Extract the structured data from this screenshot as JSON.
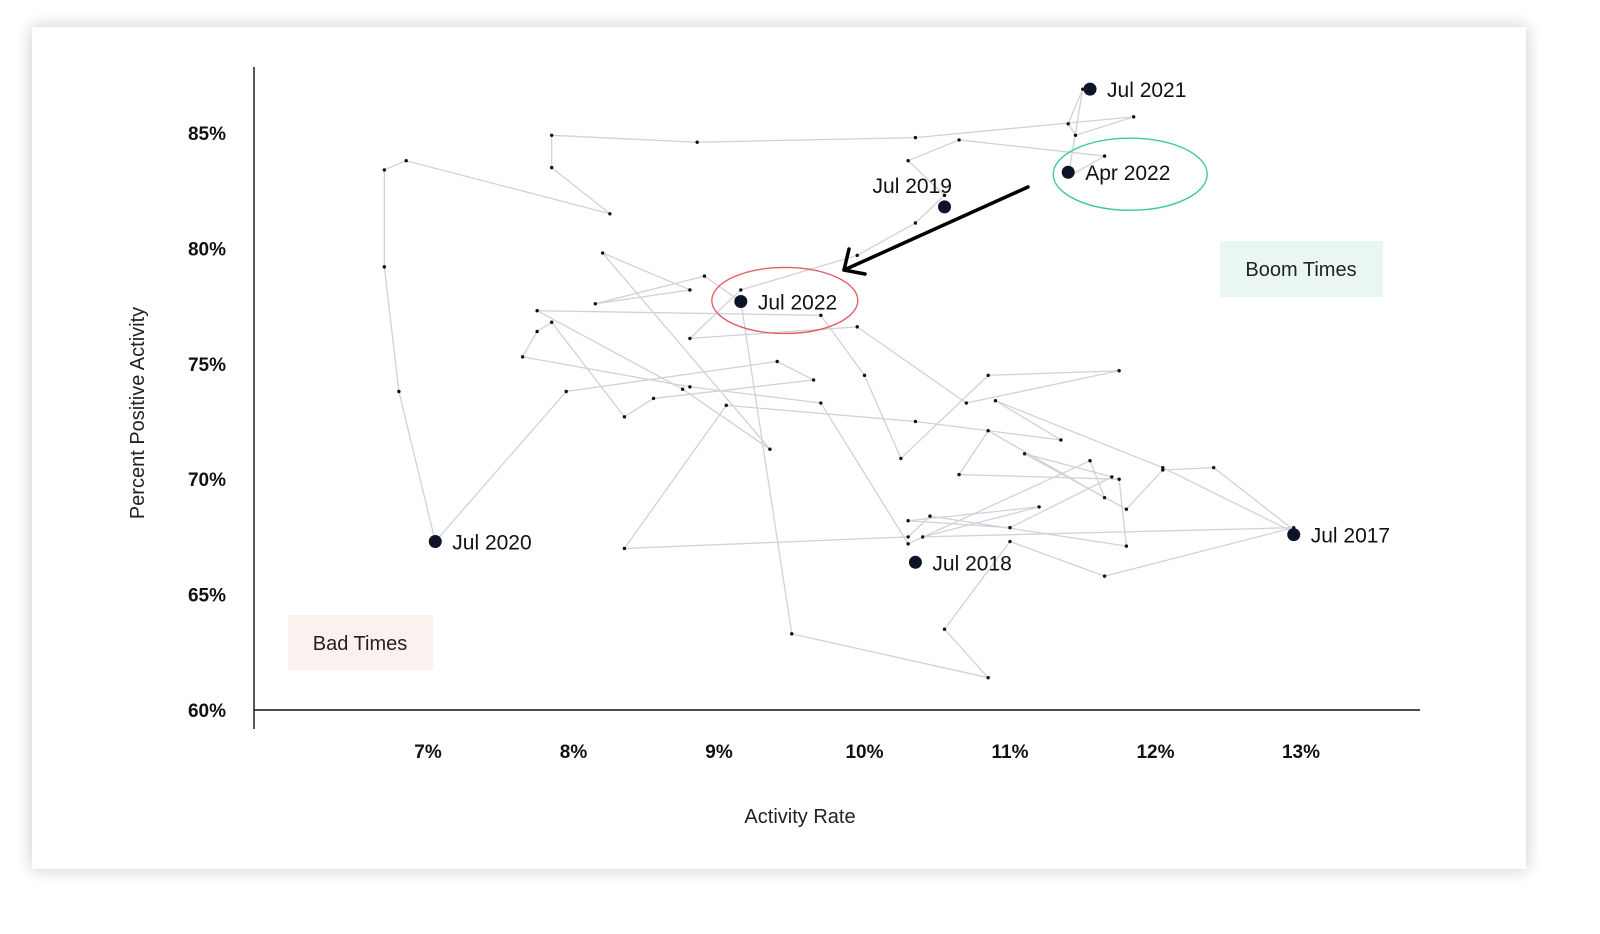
{
  "chart_data": {
    "type": "scatter",
    "xlabel": "Activity Rate",
    "ylabel": "Percent Positive Activity",
    "xlim": [
      5.8,
      13.8
    ],
    "ylim": [
      60,
      88
    ],
    "x_ticks": [
      {
        "value": 7,
        "label": "7%"
      },
      {
        "value": 8,
        "label": "8%"
      },
      {
        "value": 9,
        "label": "9%"
      },
      {
        "value": 10,
        "label": "10%"
      },
      {
        "value": 11,
        "label": "11%"
      },
      {
        "value": 12,
        "label": "12%"
      },
      {
        "value": 13,
        "label": "13%"
      }
    ],
    "y_ticks": [
      {
        "value": 60,
        "label": "60%"
      },
      {
        "value": 65,
        "label": "65%"
      },
      {
        "value": 70,
        "label": "70%"
      },
      {
        "value": 75,
        "label": "75%"
      },
      {
        "value": 80,
        "label": "80%"
      },
      {
        "value": 85,
        "label": "85%"
      }
    ],
    "path": [
      [
        12.95,
        67.8
      ],
      [
        12.4,
        70.5
      ],
      [
        12.05,
        70.4
      ],
      [
        11.8,
        68.7
      ],
      [
        11.1,
        71.1
      ],
      [
        11.7,
        70.1
      ],
      [
        11.0,
        67.9
      ],
      [
        10.3,
        68.2
      ],
      [
        11.2,
        68.8
      ],
      [
        10.4,
        67.5
      ],
      [
        12.95,
        67.9
      ],
      [
        11.65,
        65.8
      ],
      [
        11.0,
        67.3
      ],
      [
        10.55,
        63.5
      ],
      [
        10.85,
        61.4
      ],
      [
        9.5,
        63.3
      ],
      [
        9.15,
        77.7
      ],
      [
        8.9,
        78.8
      ],
      [
        8.15,
        77.6
      ],
      [
        8.8,
        78.2
      ],
      [
        8.2,
        79.8
      ],
      [
        9.35,
        71.3
      ],
      [
        8.75,
        73.9
      ],
      [
        7.75,
        77.3
      ],
      [
        9.7,
        77.1
      ],
      [
        10.0,
        74.5
      ],
      [
        10.25,
        70.9
      ],
      [
        10.85,
        74.5
      ],
      [
        11.75,
        74.7
      ],
      [
        10.7,
        73.3
      ],
      [
        9.95,
        76.6
      ],
      [
        8.8,
        76.1
      ],
      [
        9.15,
        78.2
      ],
      [
        9.95,
        79.7
      ],
      [
        10.35,
        81.1
      ],
      [
        10.55,
        82.3
      ],
      [
        10.3,
        83.8
      ],
      [
        10.65,
        84.7
      ],
      [
        11.65,
        84.0
      ],
      [
        11.4,
        83.1
      ],
      [
        11.5,
        86.9
      ],
      [
        11.4,
        85.4
      ],
      [
        11.45,
        84.9
      ],
      [
        11.85,
        85.7
      ],
      [
        10.35,
        84.8
      ],
      [
        8.85,
        84.6
      ],
      [
        7.85,
        84.9
      ],
      [
        7.85,
        83.5
      ],
      [
        8.25,
        81.5
      ],
      [
        6.85,
        83.8
      ],
      [
        6.7,
        83.4
      ],
      [
        6.7,
        79.2
      ],
      [
        6.8,
        73.8
      ],
      [
        7.05,
        67.3
      ],
      [
        7.95,
        73.8
      ],
      [
        9.4,
        75.1
      ],
      [
        9.65,
        74.3
      ],
      [
        8.55,
        73.5
      ],
      [
        8.35,
        72.7
      ],
      [
        7.85,
        76.8
      ],
      [
        7.75,
        76.4
      ],
      [
        7.65,
        75.3
      ],
      [
        8.8,
        74.0
      ],
      [
        9.7,
        73.3
      ],
      [
        10.3,
        67.2
      ],
      [
        11.55,
        70.8
      ],
      [
        11.65,
        69.2
      ],
      [
        10.85,
        72.1
      ],
      [
        10.65,
        70.2
      ],
      [
        11.75,
        70.0
      ],
      [
        11.8,
        67.1
      ],
      [
        10.45,
        68.4
      ],
      [
        10.3,
        67.5
      ],
      [
        8.35,
        67.0
      ],
      [
        9.05,
        73.2
      ],
      [
        10.35,
        72.5
      ],
      [
        11.35,
        71.7
      ],
      [
        10.9,
        73.4
      ],
      [
        12.05,
        70.5
      ],
      [
        12.95,
        67.7
      ]
    ],
    "highlighted_points": [
      {
        "label": "Jul 2021",
        "x": 11.55,
        "y": 86.9
      },
      {
        "label": "Apr 2022",
        "x": 11.4,
        "y": 83.3
      },
      {
        "label": "Jul 2019",
        "x": 10.55,
        "y": 81.8
      },
      {
        "label": "Jul 2022",
        "x": 9.15,
        "y": 77.7
      },
      {
        "label": "Jul 2020",
        "x": 7.05,
        "y": 67.3
      },
      {
        "label": "Jul 2018",
        "x": 10.35,
        "y": 66.4
      },
      {
        "label": "Jul 2017",
        "x": 12.95,
        "y": 67.6
      }
    ],
    "annotations": {
      "circled_green": "Apr 2022",
      "circled_red": "Jul 2022",
      "arrow_from": "Apr 2022",
      "arrow_to": "Jul 2022"
    },
    "regions": {
      "boom": {
        "label": "Boom Times",
        "color": "#eaf7f1"
      },
      "bad": {
        "label": "Bad Times",
        "color": "#fbf1ef"
      }
    },
    "grid": false,
    "colors": {
      "line": "#cfd2d8",
      "point": "#0e1428",
      "green_circle": "#3fc9a0",
      "red_circle": "#e2606a",
      "arrow": "#000000"
    }
  }
}
